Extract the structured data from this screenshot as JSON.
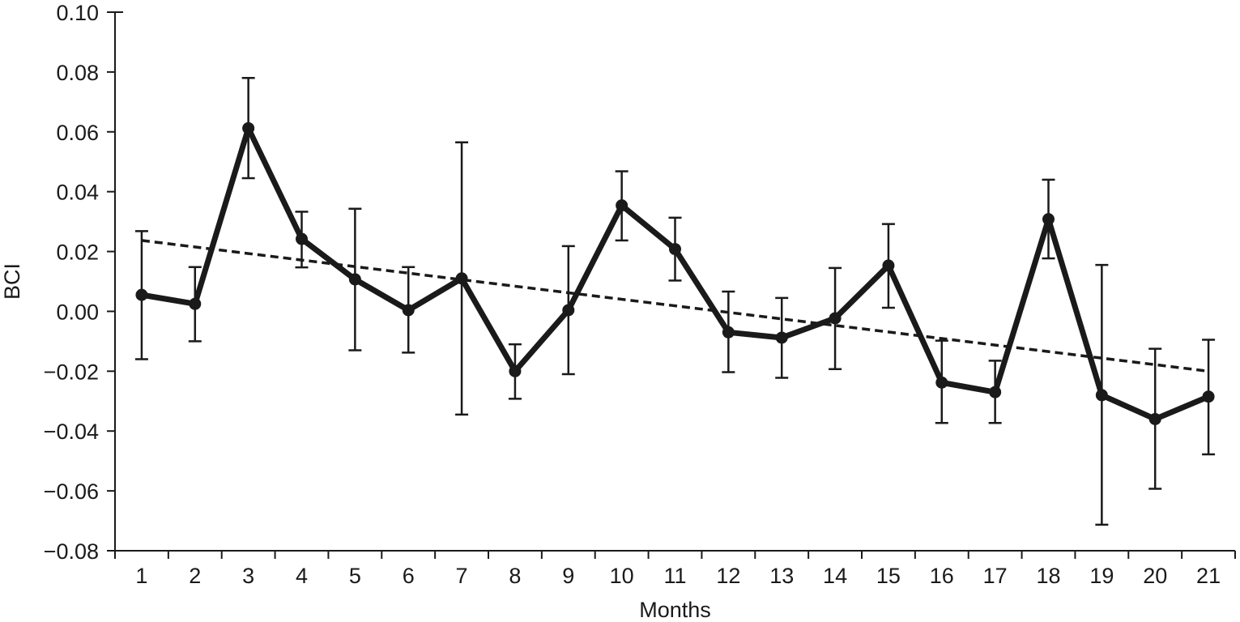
{
  "chart_data": {
    "type": "line",
    "title": "",
    "xlabel": "Months",
    "ylabel": "BCI",
    "xlim": [
      0.5,
      21.5
    ],
    "ylim": [
      -0.08,
      0.1
    ],
    "x_ticks": [
      "1",
      "2",
      "3",
      "4",
      "5",
      "6",
      "7",
      "8",
      "9",
      "10",
      "11",
      "12",
      "13",
      "14",
      "15",
      "16",
      "17",
      "18",
      "19",
      "20",
      "21"
    ],
    "y_ticks": [
      {
        "value": 0.1,
        "label": "0.10"
      },
      {
        "value": 0.08,
        "label": "0.08"
      },
      {
        "value": 0.06,
        "label": "0.06"
      },
      {
        "value": 0.04,
        "label": "0.04"
      },
      {
        "value": 0.02,
        "label": "0.02"
      },
      {
        "value": 0.0,
        "label": "0.00"
      },
      {
        "value": -0.02,
        "label": "−0.02"
      },
      {
        "value": -0.04,
        "label": "−0.04"
      },
      {
        "value": -0.06,
        "label": "−0.06"
      },
      {
        "value": -0.08,
        "label": "−0.08"
      }
    ],
    "grid": false,
    "legend": "none",
    "series": [
      {
        "x": [
          1,
          2,
          3,
          4,
          5,
          6,
          7,
          8,
          9,
          10,
          11,
          12,
          13,
          14,
          15,
          16,
          17,
          18,
          19,
          20,
          21
        ],
        "values": [
          0.0055,
          0.0025,
          0.0612,
          0.0242,
          0.0107,
          0.0004,
          0.011,
          -0.02,
          0.0004,
          0.0354,
          0.0208,
          -0.007,
          -0.0088,
          -0.0023,
          0.0153,
          -0.0238,
          -0.027,
          0.0308,
          -0.028,
          -0.036,
          -0.0285
        ],
        "error_low": [
          -0.016,
          -0.01,
          0.0445,
          0.0147,
          -0.013,
          -0.0138,
          -0.0345,
          -0.0292,
          -0.021,
          0.0237,
          0.0103,
          -0.0203,
          -0.0222,
          -0.0193,
          0.0012,
          -0.0373,
          -0.0373,
          0.0177,
          -0.0713,
          -0.0593,
          -0.0478
        ],
        "error_high": [
          0.0268,
          0.0148,
          0.078,
          0.0333,
          0.0343,
          0.0148,
          0.0565,
          -0.011,
          0.0218,
          0.0468,
          0.0313,
          0.0066,
          0.0045,
          0.0145,
          0.0292,
          -0.0098,
          -0.0165,
          0.044,
          0.0155,
          -0.0125,
          -0.0095
        ],
        "color": "#1a1a1a"
      }
    ],
    "trend_line": {
      "style": "dashed",
      "x": [
        1,
        21
      ],
      "values": [
        0.0237,
        -0.02
      ],
      "color": "#1a1a1a"
    }
  }
}
